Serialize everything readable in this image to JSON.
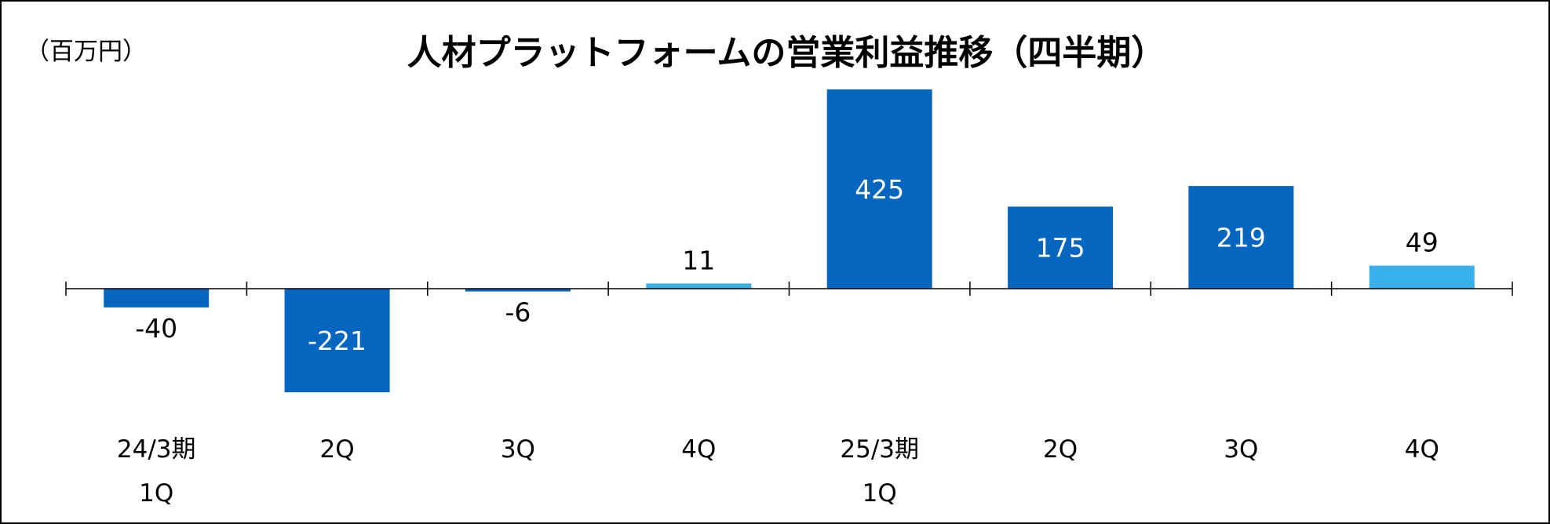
{
  "chart_data": {
    "type": "bar",
    "title": "人材プラットフォームの営業利益推移（四半期）",
    "unit_label": "（百万円）",
    "categories": [
      [
        "24/3期",
        "1Q"
      ],
      [
        "2Q"
      ],
      [
        "3Q"
      ],
      [
        "4Q"
      ],
      [
        "25/3期",
        "1Q"
      ],
      [
        "2Q"
      ],
      [
        "3Q"
      ],
      [
        "4Q"
      ]
    ],
    "values": [
      -40,
      -221,
      -6,
      11,
      425,
      175,
      219,
      49
    ],
    "value_labels": [
      "-40",
      "-221",
      "-6",
      "11",
      "425",
      "175",
      "219",
      "49"
    ],
    "bar_colors": [
      "#0566C0",
      "#0566C0",
      "#0566C0",
      "#3AB0EA",
      "#0566C0",
      "#0566C0",
      "#0566C0",
      "#3AB0EA"
    ],
    "label_inside": [
      false,
      true,
      false,
      false,
      true,
      true,
      true,
      false
    ],
    "inside_label_color": "#ffffff",
    "outside_label_color": "#000000",
    "ylim": [
      -240,
      440
    ],
    "grid": false,
    "legend": "none"
  }
}
